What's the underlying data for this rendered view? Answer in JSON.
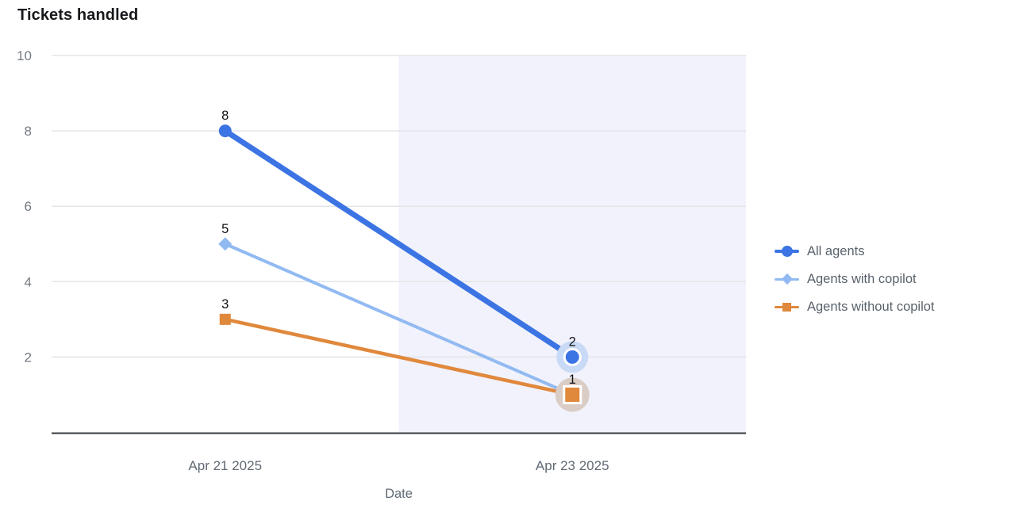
{
  "chart": {
    "title": "Tickets handled"
  },
  "chart_data": {
    "type": "line",
    "title": "Tickets handled",
    "xlabel": "Date",
    "ylabel": "",
    "categories": [
      "Apr 21 2025",
      "Apr 23 2025"
    ],
    "ylim": [
      0,
      10
    ],
    "yticks": [
      2,
      4,
      6,
      8,
      10
    ],
    "grid": true,
    "legend_position": "right",
    "highlight_region": {
      "from_fraction": 0.5,
      "to_fraction": 1.0,
      "color": "#f1f2fb"
    },
    "series": [
      {
        "name": "All agents",
        "values": [
          8,
          2
        ],
        "labels": [
          "8",
          "2"
        ],
        "color": "#3c74e4",
        "marker": "circle",
        "line_width": 7,
        "last_point_halo": "#c9daf6"
      },
      {
        "name": "Agents with copilot",
        "values": [
          5,
          1
        ],
        "labels": [
          "5",
          ""
        ],
        "color": "#92baf2",
        "marker": "diamond",
        "line_width": 4,
        "last_point_halo": ""
      },
      {
        "name": "Agents without copilot",
        "values": [
          3,
          1
        ],
        "labels": [
          "3",
          "1"
        ],
        "color": "#e0883c",
        "marker": "square",
        "line_width": 4.5,
        "last_point_halo": "#dacdc5"
      }
    ],
    "colors": {
      "grid": "#e3e5e9",
      "baseline": "#3a3d41",
      "y_tick_text": "#747a82",
      "x_tick_text": "#606974",
      "axis_title_text": "#606974",
      "point_label_text": "#121316"
    }
  }
}
